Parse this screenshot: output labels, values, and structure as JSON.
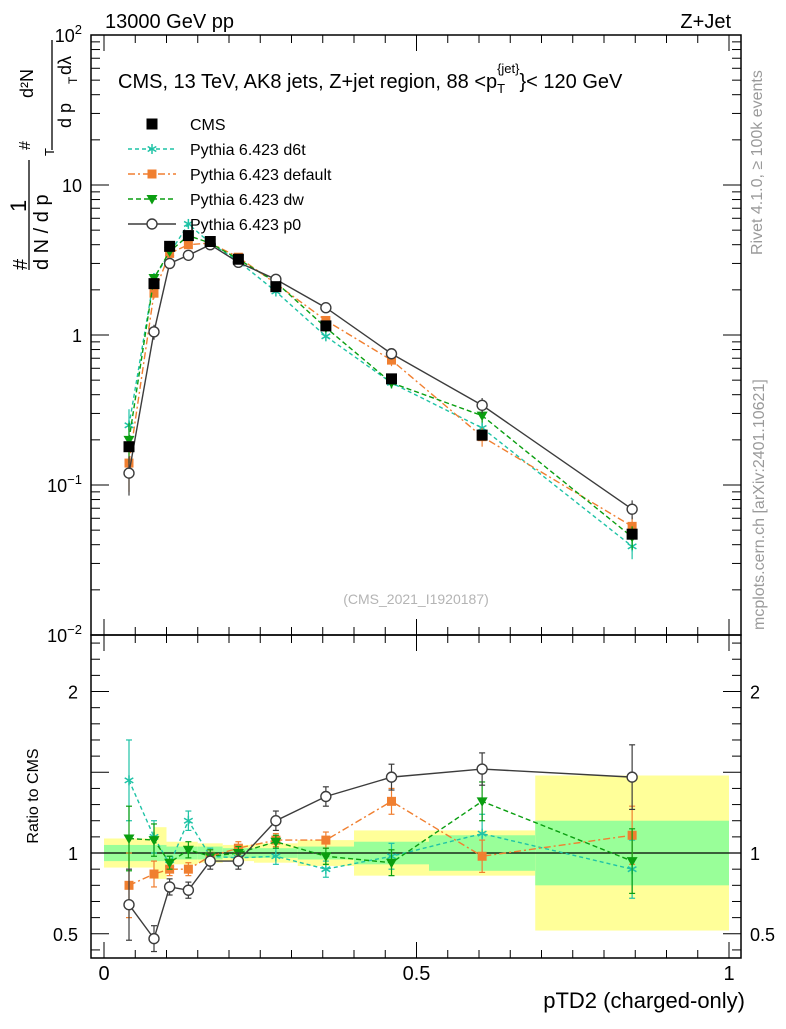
{
  "header": {
    "left": "13000 GeV pp",
    "right": "Z+Jet"
  },
  "side": {
    "rivet": "Rivet 4.1.0, ≥ 100k events",
    "mcplots": "mcplots.cern.ch [arXiv:2401.10621]"
  },
  "chart_data": {
    "type": "scatter",
    "title": "CMS, 13 TeV, AK8 jets, Z+jet region, 88 <p_T^{jet}< 120 GeV",
    "title_parts": {
      "main": "CMS, 13 TeV, AK8 jets, Z+jet region, 88 <p",
      "sub": "T",
      "sup": "{jet}",
      "tail": "}< 120 GeV"
    },
    "watermark": "(CMS_2021_I1920187)",
    "xlabel": "pTD2 (charged-only)",
    "ylabel": "1/N dN/dλ",
    "ylabel_parts": {
      "hash": "#",
      "one": "1",
      "dn": "d N / d p",
      "t": "T",
      "d2n": "d²N",
      "dpt": "d p",
      "dl": "dλ"
    },
    "xlim": [
      0,
      1
    ],
    "ylim": [
      0.01,
      100
    ],
    "log_y": true,
    "main_ticks_y": [
      {
        "value": 100,
        "base": "10",
        "exp": "2"
      },
      {
        "value": 10,
        "label": "10"
      },
      {
        "value": 1,
        "label": "1"
      },
      {
        "value": 0.1,
        "base": "10",
        "exp": "−1"
      },
      {
        "value": 0.01,
        "base": "10",
        "exp": "−2"
      }
    ],
    "x_ticks": [
      {
        "value": 0,
        "label": "0"
      },
      {
        "value": 0.5,
        "label": "0.5"
      },
      {
        "value": 1,
        "label": "1"
      }
    ],
    "ratio": {
      "ylabel": "Ratio to CMS",
      "ylim": [
        0.35,
        2.35
      ],
      "ticks": [
        {
          "value": 2,
          "label": "2"
        },
        {
          "value": 1,
          "label": "1"
        },
        {
          "value": 0.5,
          "label": "0.5"
        }
      ],
      "ref_line": 1
    },
    "bins": [
      [
        0,
        0.08
      ],
      [
        0.08,
        0.1
      ],
      [
        0.1,
        0.12
      ],
      [
        0.12,
        0.15
      ],
      [
        0.15,
        0.19
      ],
      [
        0.19,
        0.24
      ],
      [
        0.24,
        0.31
      ],
      [
        0.31,
        0.4
      ],
      [
        0.4,
        0.52
      ],
      [
        0.52,
        0.69
      ],
      [
        0.69,
        1.0
      ]
    ],
    "x": [
      0.04,
      0.08,
      0.105,
      0.135,
      0.17,
      0.215,
      0.275,
      0.355,
      0.46,
      0.605,
      0.845
    ],
    "data_series": {
      "name": "CMS",
      "values": [
        0.18,
        2.2,
        3.9,
        4.6,
        4.2,
        3.2,
        2.1,
        1.15,
        0.51,
        0.215,
        0.047
      ],
      "stat_band": [
        0.05,
        0.05,
        0.04,
        0.04,
        0.04,
        0.03,
        0.03,
        0.04,
        0.07,
        0.11,
        0.2
      ],
      "total_band": [
        0.09,
        0.16,
        0.07,
        0.07,
        0.06,
        0.05,
        0.06,
        0.08,
        0.14,
        0.14,
        0.48
      ]
    },
    "series": [
      {
        "name": "Pythia 6.423 d6t",
        "color": "#1fc3a6",
        "dash": "4 3",
        "marker": "asterisk",
        "values": [
          0.25,
          2.4,
          3.5,
          5.5,
          4.1,
          3.1,
          1.95,
          0.98,
          0.48,
          0.24,
          0.039
        ],
        "errors": [
          0.07,
          0.15,
          0.12,
          0.2,
          0.1,
          0.08,
          0.07,
          0.05,
          0.04,
          0.03,
          0.007
        ],
        "ratio": [
          1.45,
          1.1,
          0.93,
          1.2,
          0.98,
          0.97,
          0.98,
          0.9,
          0.98,
          1.12,
          0.9
        ],
        "ratio_err": [
          0.25,
          0.1,
          0.05,
          0.06,
          0.05,
          0.05,
          0.05,
          0.05,
          0.08,
          0.12,
          0.18
        ]
      },
      {
        "name": "Pythia 6.423 default",
        "color": "#f07f30",
        "dash": "7 3 2 3",
        "marker": "square",
        "values": [
          0.14,
          1.9,
          3.5,
          4.0,
          4.1,
          3.3,
          2.2,
          1.25,
          0.68,
          0.21,
          0.053
        ],
        "errors": [
          0.05,
          0.15,
          0.12,
          0.15,
          0.1,
          0.08,
          0.07,
          0.06,
          0.06,
          0.03,
          0.008
        ],
        "ratio": [
          0.8,
          0.87,
          0.9,
          0.9,
          0.98,
          1.03,
          1.08,
          1.08,
          1.32,
          0.98,
          1.11
        ],
        "ratio_err": [
          0.2,
          0.08,
          0.04,
          0.04,
          0.04,
          0.04,
          0.04,
          0.05,
          0.08,
          0.1,
          0.18
        ]
      },
      {
        "name": "Pythia 6.423 dw",
        "color": "#0a9e10",
        "dash": "5 3",
        "marker": "triangle-down",
        "values": [
          0.2,
          2.4,
          3.6,
          4.6,
          4.1,
          3.2,
          2.25,
          1.12,
          0.48,
          0.29,
          0.045
        ],
        "errors": [
          0.06,
          0.15,
          0.12,
          0.15,
          0.1,
          0.08,
          0.07,
          0.06,
          0.04,
          0.03,
          0.008
        ],
        "ratio": [
          1.09,
          1.08,
          0.94,
          1.02,
          0.98,
          1.0,
          1.07,
          0.98,
          0.94,
          1.32,
          0.95
        ],
        "ratio_err": [
          0.2,
          0.1,
          0.04,
          0.05,
          0.04,
          0.04,
          0.04,
          0.05,
          0.08,
          0.12,
          0.2
        ]
      },
      {
        "name": "Pythia 6.423 p0",
        "color": "#3c3c3c",
        "dash": "",
        "marker": "circle-open",
        "values": [
          0.12,
          1.05,
          3.0,
          3.4,
          4.0,
          3.05,
          2.35,
          1.52,
          0.75,
          0.34,
          0.069
        ],
        "errors": [
          0.035,
          0.12,
          0.12,
          0.12,
          0.1,
          0.08,
          0.07,
          0.06,
          0.06,
          0.04,
          0.01
        ],
        "ratio": [
          0.68,
          0.47,
          0.79,
          0.77,
          0.95,
          0.95,
          1.2,
          1.35,
          1.47,
          1.52,
          1.47
        ],
        "ratio_err": [
          0.22,
          0.08,
          0.05,
          0.05,
          0.05,
          0.05,
          0.06,
          0.06,
          0.08,
          0.1,
          0.2
        ]
      }
    ],
    "legend_position": "top-left"
  }
}
